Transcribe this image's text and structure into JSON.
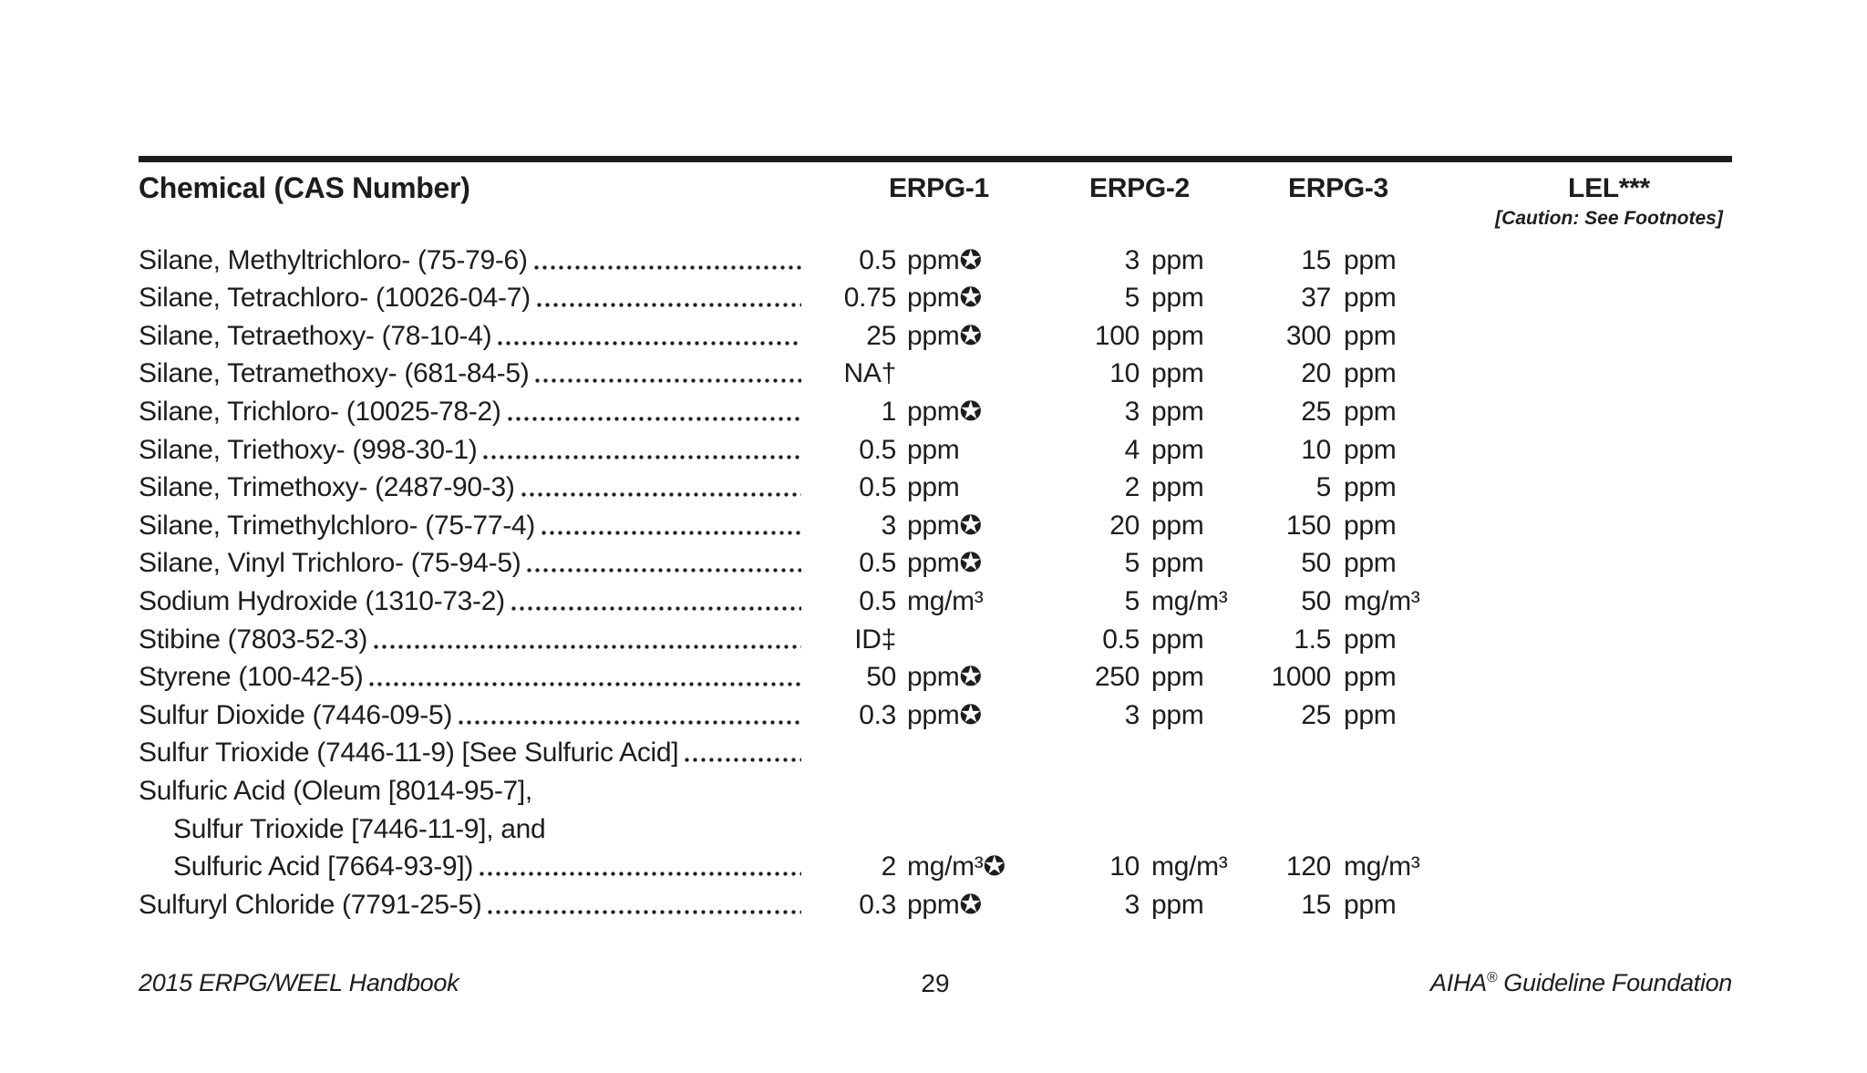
{
  "header": {
    "col_chemical": "Chemical (CAS Number)",
    "col_erpg1": "ERPG-1",
    "col_erpg2": "ERPG-2",
    "col_erpg3": "ERPG-3",
    "col_lel": "LEL***",
    "col_lel_caution": "[Caution: See Footnotes]"
  },
  "icons": {
    "certified_star": "✪"
  },
  "colors": {
    "text": "#1d1d1d",
    "background": "#ffffff",
    "rule": "#1d1d1d"
  },
  "table": {
    "rows": [
      {
        "name": "Silane, Methyltrichloro- (75-79-6)",
        "indent": false,
        "leader": true,
        "erpg1": {
          "value": "0.5",
          "unit": "ppm",
          "star": true
        },
        "erpg2": {
          "value": "3",
          "unit": "ppm"
        },
        "erpg3": {
          "value": "15",
          "unit": "ppm"
        }
      },
      {
        "name": "Silane, Tetrachloro- (10026-04-7)",
        "indent": false,
        "leader": true,
        "erpg1": {
          "value": "0.75",
          "unit": "ppm",
          "star": true
        },
        "erpg2": {
          "value": "5",
          "unit": "ppm"
        },
        "erpg3": {
          "value": "37",
          "unit": "ppm"
        }
      },
      {
        "name": "Silane, Tetraethoxy- (78-10-4)",
        "indent": false,
        "leader": true,
        "erpg1": {
          "value": "25",
          "unit": "ppm",
          "star": true
        },
        "erpg2": {
          "value": "100",
          "unit": "ppm"
        },
        "erpg3": {
          "value": "300",
          "unit": "ppm"
        }
      },
      {
        "name": "Silane, Tetramethoxy- (681-84-5)",
        "indent": false,
        "leader": true,
        "erpg1": {
          "value": "NA†",
          "unit": "",
          "star": false
        },
        "erpg2": {
          "value": "10",
          "unit": "ppm"
        },
        "erpg3": {
          "value": "20",
          "unit": "ppm"
        }
      },
      {
        "name": "Silane, Trichloro- (10025-78-2)",
        "indent": false,
        "leader": true,
        "erpg1": {
          "value": "1",
          "unit": "ppm",
          "star": true
        },
        "erpg2": {
          "value": "3",
          "unit": "ppm"
        },
        "erpg3": {
          "value": "25",
          "unit": "ppm"
        }
      },
      {
        "name": "Silane, Triethoxy- (998-30-1)",
        "indent": false,
        "leader": true,
        "erpg1": {
          "value": "0.5",
          "unit": "ppm",
          "star": false
        },
        "erpg2": {
          "value": "4",
          "unit": "ppm"
        },
        "erpg3": {
          "value": "10",
          "unit": "ppm"
        }
      },
      {
        "name": "Silane, Trimethoxy- (2487-90-3)",
        "indent": false,
        "leader": true,
        "erpg1": {
          "value": "0.5",
          "unit": "ppm",
          "star": false
        },
        "erpg2": {
          "value": "2",
          "unit": "ppm"
        },
        "erpg3": {
          "value": "5",
          "unit": "ppm"
        }
      },
      {
        "name": "Silane, Trimethylchloro- (75-77-4)",
        "indent": false,
        "leader": true,
        "erpg1": {
          "value": "3",
          "unit": "ppm",
          "star": true
        },
        "erpg2": {
          "value": "20",
          "unit": "ppm"
        },
        "erpg3": {
          "value": "150",
          "unit": "ppm"
        }
      },
      {
        "name": "Silane, Vinyl Trichloro- (75-94-5)",
        "indent": false,
        "leader": true,
        "erpg1": {
          "value": "0.5",
          "unit": "ppm",
          "star": true
        },
        "erpg2": {
          "value": "5",
          "unit": "ppm"
        },
        "erpg3": {
          "value": "50",
          "unit": "ppm"
        }
      },
      {
        "name": "Sodium Hydroxide (1310-73-2)",
        "indent": false,
        "leader": true,
        "erpg1": {
          "value": "0.5",
          "unit": "mg/m³",
          "star": false
        },
        "erpg2": {
          "value": "5",
          "unit": "mg/m³"
        },
        "erpg3": {
          "value": "50",
          "unit": "mg/m³"
        }
      },
      {
        "name": "Stibine (7803-52-3)",
        "indent": false,
        "leader": true,
        "erpg1": {
          "value": "ID‡",
          "unit": "",
          "star": false
        },
        "erpg2": {
          "value": "0.5",
          "unit": "ppm"
        },
        "erpg3": {
          "value": "1.5",
          "unit": "ppm"
        }
      },
      {
        "name": "Styrene (100-42-5)",
        "indent": false,
        "leader": true,
        "erpg1": {
          "value": "50",
          "unit": "ppm",
          "star": true
        },
        "erpg2": {
          "value": "250",
          "unit": "ppm"
        },
        "erpg3": {
          "value": "1000",
          "unit": "ppm"
        }
      },
      {
        "name": "Sulfur Dioxide (7446-09-5)",
        "indent": false,
        "leader": true,
        "erpg1": {
          "value": "0.3",
          "unit": "ppm",
          "star": true
        },
        "erpg2": {
          "value": "3",
          "unit": "ppm"
        },
        "erpg3": {
          "value": "25",
          "unit": "ppm"
        }
      },
      {
        "name": "Sulfur Trioxide (7446-11-9) [See Sulfuric Acid]",
        "indent": false,
        "leader": true,
        "erpg1": {
          "value": "",
          "unit": "",
          "star": false
        },
        "erpg2": {
          "value": "",
          "unit": ""
        },
        "erpg3": {
          "value": "",
          "unit": ""
        }
      },
      {
        "name": "Sulfuric Acid (Oleum [8014-95-7],",
        "indent": false,
        "leader": false,
        "erpg1": {
          "value": "",
          "unit": "",
          "star": false
        },
        "erpg2": {
          "value": "",
          "unit": ""
        },
        "erpg3": {
          "value": "",
          "unit": ""
        }
      },
      {
        "name": "Sulfur Trioxide [7446-11-9], and",
        "indent": true,
        "leader": false,
        "erpg1": {
          "value": "",
          "unit": "",
          "star": false
        },
        "erpg2": {
          "value": "",
          "unit": ""
        },
        "erpg3": {
          "value": "",
          "unit": ""
        }
      },
      {
        "name": "Sulfuric Acid [7664-93-9])",
        "indent": true,
        "leader": true,
        "erpg1": {
          "value": "2",
          "unit": "mg/m³",
          "star": true
        },
        "erpg2": {
          "value": "10",
          "unit": "mg/m³"
        },
        "erpg3": {
          "value": "120",
          "unit": "mg/m³"
        }
      },
      {
        "name": "Sulfuryl Chloride (7791-25-5)",
        "indent": false,
        "leader": true,
        "erpg1": {
          "value": "0.3",
          "unit": "ppm",
          "star": true
        },
        "erpg2": {
          "value": "3",
          "unit": "ppm"
        },
        "erpg3": {
          "value": "15",
          "unit": "ppm"
        }
      }
    ]
  },
  "footer": {
    "left": "2015 ERPG/WEEL Handbook",
    "page_number": "29",
    "right_prefix": "AIHA",
    "right_reg": "®",
    "right_suffix": " Guideline Foundation"
  }
}
